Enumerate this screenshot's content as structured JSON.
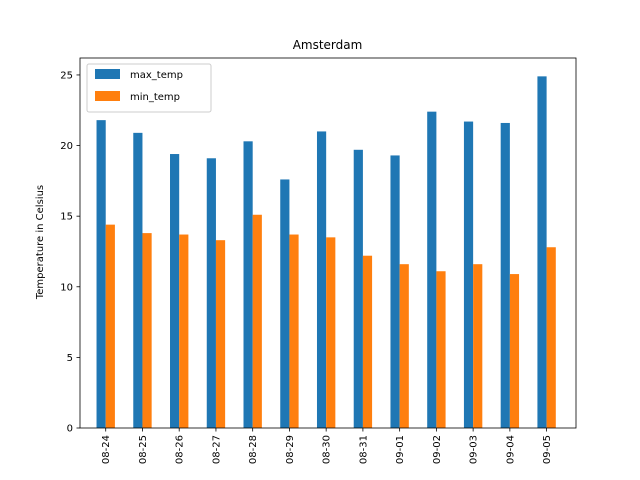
{
  "chart_data": {
    "type": "bar",
    "title": "Amsterdam",
    "xlabel": "",
    "ylabel": "Temperature in Celsius",
    "categories": [
      "08-24",
      "08-25",
      "08-26",
      "08-27",
      "08-28",
      "08-29",
      "08-30",
      "08-31",
      "09-01",
      "09-02",
      "09-03",
      "09-04",
      "09-05"
    ],
    "series": [
      {
        "name": "max_temp",
        "color": "#1f77b4",
        "values": [
          21.8,
          20.9,
          19.4,
          19.1,
          20.3,
          17.6,
          21.0,
          19.7,
          19.3,
          22.4,
          21.7,
          21.6,
          24.9
        ]
      },
      {
        "name": "min_temp",
        "color": "#ff7f0e",
        "values": [
          14.4,
          13.8,
          13.7,
          13.3,
          15.1,
          13.7,
          13.5,
          12.2,
          11.6,
          11.1,
          11.6,
          10.9,
          12.8
        ]
      }
    ],
    "ylim": [
      0,
      26.2
    ],
    "yticks": [
      0,
      5,
      10,
      15,
      20,
      25
    ],
    "grid": false,
    "legend_position": "top-left"
  }
}
